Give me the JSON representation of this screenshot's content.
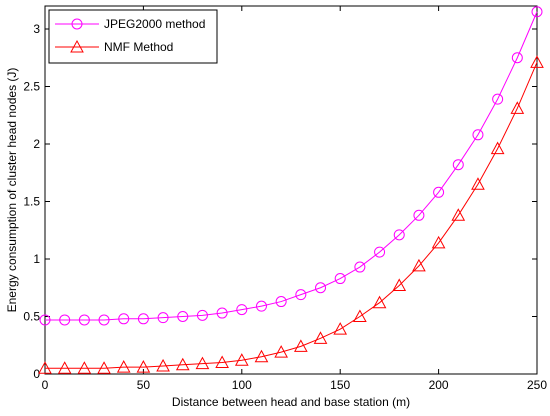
{
  "chart_data": {
    "type": "line",
    "title": "",
    "xlabel": "Distance between head and base station (m)",
    "ylabel": "Energy consumption of cluster head nodes (J)",
    "xlim": [
      0,
      250
    ],
    "ylim": [
      0,
      3.2
    ],
    "xticks": [
      0,
      50,
      100,
      150,
      200,
      250
    ],
    "yticks": [
      0,
      0.5,
      1,
      1.5,
      2,
      2.5,
      3
    ],
    "xtick_labels": [
      "0",
      "50",
      "100",
      "150",
      "200",
      "250"
    ],
    "ytick_labels": [
      "0",
      "0.5",
      "1",
      "1.5",
      "2",
      "2.5",
      "3"
    ],
    "grid": false,
    "legend_position": "top-left",
    "x": [
      0,
      10,
      20,
      30,
      40,
      50,
      60,
      70,
      80,
      90,
      100,
      110,
      120,
      130,
      140,
      150,
      160,
      170,
      180,
      190,
      200,
      210,
      220,
      230,
      240,
      250
    ],
    "series": [
      {
        "name": "JPEG2000 method",
        "color": "#ff00ff",
        "marker": "circle",
        "values": [
          0.47,
          0.47,
          0.47,
          0.47,
          0.48,
          0.48,
          0.49,
          0.5,
          0.51,
          0.53,
          0.56,
          0.59,
          0.63,
          0.69,
          0.75,
          0.83,
          0.93,
          1.06,
          1.21,
          1.38,
          1.58,
          1.82,
          2.08,
          2.39,
          2.75,
          3.15
        ]
      },
      {
        "name": "NMF Method",
        "color": "#ff0000",
        "marker": "triangle",
        "values": [
          0.05,
          0.05,
          0.05,
          0.05,
          0.06,
          0.06,
          0.07,
          0.08,
          0.09,
          0.1,
          0.12,
          0.15,
          0.19,
          0.24,
          0.31,
          0.39,
          0.5,
          0.62,
          0.77,
          0.94,
          1.14,
          1.38,
          1.65,
          1.96,
          2.31,
          2.71
        ]
      }
    ]
  }
}
